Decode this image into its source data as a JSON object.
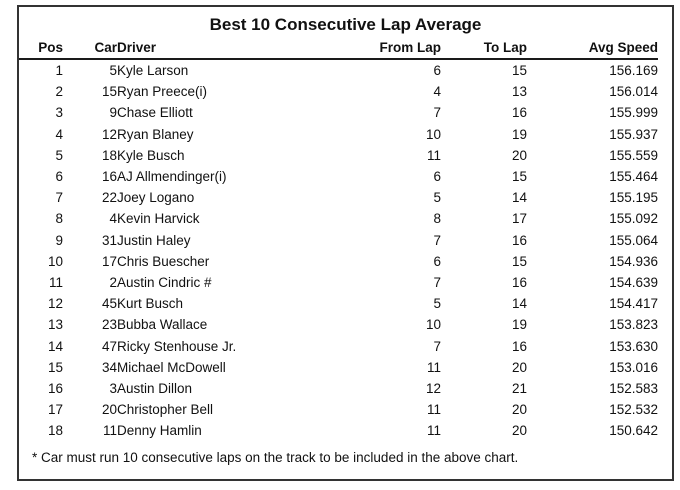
{
  "title": "Best 10 Consecutive Lap Average",
  "footnote": "* Car must run 10 consecutive laps on the track to be included in the above chart.",
  "colors": {
    "background": "#ffffff",
    "text": "#111111",
    "frame_border": "#333333",
    "header_rule": "#1a1a1a"
  },
  "chart_data": {
    "type": "table",
    "title": "Best 10 Consecutive Lap Average",
    "columns": [
      "Pos",
      "Car",
      "Driver",
      "From Lap",
      "To Lap",
      "Avg Speed"
    ],
    "rows": [
      [
        "1",
        "5",
        "Kyle Larson",
        "6",
        "15",
        "156.169"
      ],
      [
        "2",
        "15",
        "Ryan Preece(i)",
        "4",
        "13",
        "156.014"
      ],
      [
        "3",
        "9",
        "Chase Elliott",
        "7",
        "16",
        "155.999"
      ],
      [
        "4",
        "12",
        "Ryan Blaney",
        "10",
        "19",
        "155.937"
      ],
      [
        "5",
        "18",
        "Kyle Busch",
        "11",
        "20",
        "155.559"
      ],
      [
        "6",
        "16",
        "AJ Allmendinger(i)",
        "6",
        "15",
        "155.464"
      ],
      [
        "7",
        "22",
        "Joey Logano",
        "5",
        "14",
        "155.195"
      ],
      [
        "8",
        "4",
        "Kevin Harvick",
        "8",
        "17",
        "155.092"
      ],
      [
        "9",
        "31",
        "Justin Haley",
        "7",
        "16",
        "155.064"
      ],
      [
        "10",
        "17",
        "Chris Buescher",
        "6",
        "15",
        "154.936"
      ],
      [
        "11",
        "2",
        "Austin Cindric #",
        "7",
        "16",
        "154.639"
      ],
      [
        "12",
        "45",
        "Kurt Busch",
        "5",
        "14",
        "154.417"
      ],
      [
        "13",
        "23",
        "Bubba Wallace",
        "10",
        "19",
        "153.823"
      ],
      [
        "14",
        "47",
        "Ricky Stenhouse Jr.",
        "7",
        "16",
        "153.630"
      ],
      [
        "15",
        "34",
        "Michael McDowell",
        "11",
        "20",
        "153.016"
      ],
      [
        "16",
        "3",
        "Austin Dillon",
        "12",
        "21",
        "152.583"
      ],
      [
        "17",
        "20",
        "Christopher Bell",
        "11",
        "20",
        "152.532"
      ],
      [
        "18",
        "11",
        "Denny Hamlin",
        "11",
        "20",
        "150.642"
      ]
    ],
    "footnote": "* Car must run 10 consecutive laps on the track to be included in the above chart."
  }
}
